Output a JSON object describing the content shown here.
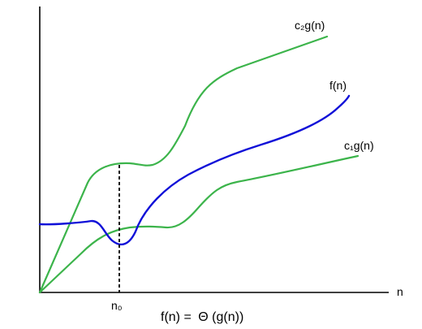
{
  "title": "f(n) = Θ(g(n))",
  "title_parts": {
    "lhs": "f(n) =",
    "symbol": "Θ",
    "rhs": "(g(n))"
  },
  "axes": {
    "x_label": "n",
    "threshold_label": "n₀"
  },
  "curves": {
    "upper": {
      "label": "c₂g(n)",
      "color": "#3cb44b"
    },
    "f": {
      "label": "f(n)",
      "color": "#1010d8"
    },
    "lower": {
      "label": "c₁g(n)",
      "color": "#3cb44b"
    }
  },
  "colors": {
    "axis": "#000000",
    "threshold_line": "#000000"
  }
}
